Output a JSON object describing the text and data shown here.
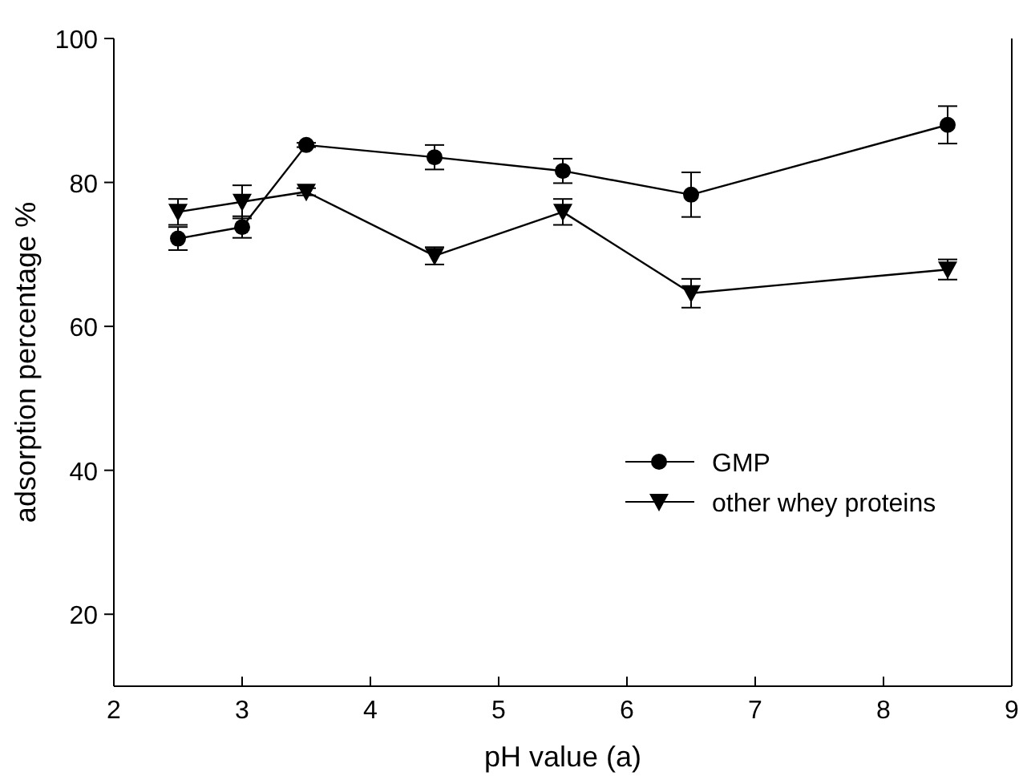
{
  "chart_data": {
    "type": "line",
    "xlabel": "pH value (a)",
    "ylabel": "adsorption percentage %",
    "x": [
      2.5,
      3,
      3.5,
      4.5,
      5.5,
      6.5,
      8.5
    ],
    "series": [
      {
        "name": "GMP",
        "color": "#000000",
        "marker": "circle",
        "values": [
          72.2,
          73.8,
          85.2,
          83.5,
          81.6,
          78.3,
          88
        ],
        "errors": [
          1.6,
          1.5,
          0.3,
          1.7,
          1.7,
          3.1,
          2.6
        ]
      },
      {
        "name": "other whey proteins",
        "color": "#000000",
        "marker": "triangle",
        "values": [
          75.9,
          77.3,
          78.7,
          69.8,
          75.9,
          64.6,
          67.9
        ],
        "errors": [
          1.8,
          2.3,
          0.5,
          1.2,
          1.8,
          2,
          1.4
        ]
      }
    ],
    "xlim": [
      2,
      9
    ],
    "xticks": [
      2,
      3,
      4,
      5,
      6,
      7,
      8,
      9
    ],
    "ylim": [
      10,
      100
    ],
    "yticks": [
      20,
      40,
      60,
      80,
      100
    ],
    "grid": false,
    "legend": "right",
    "line_style": "solid"
  }
}
